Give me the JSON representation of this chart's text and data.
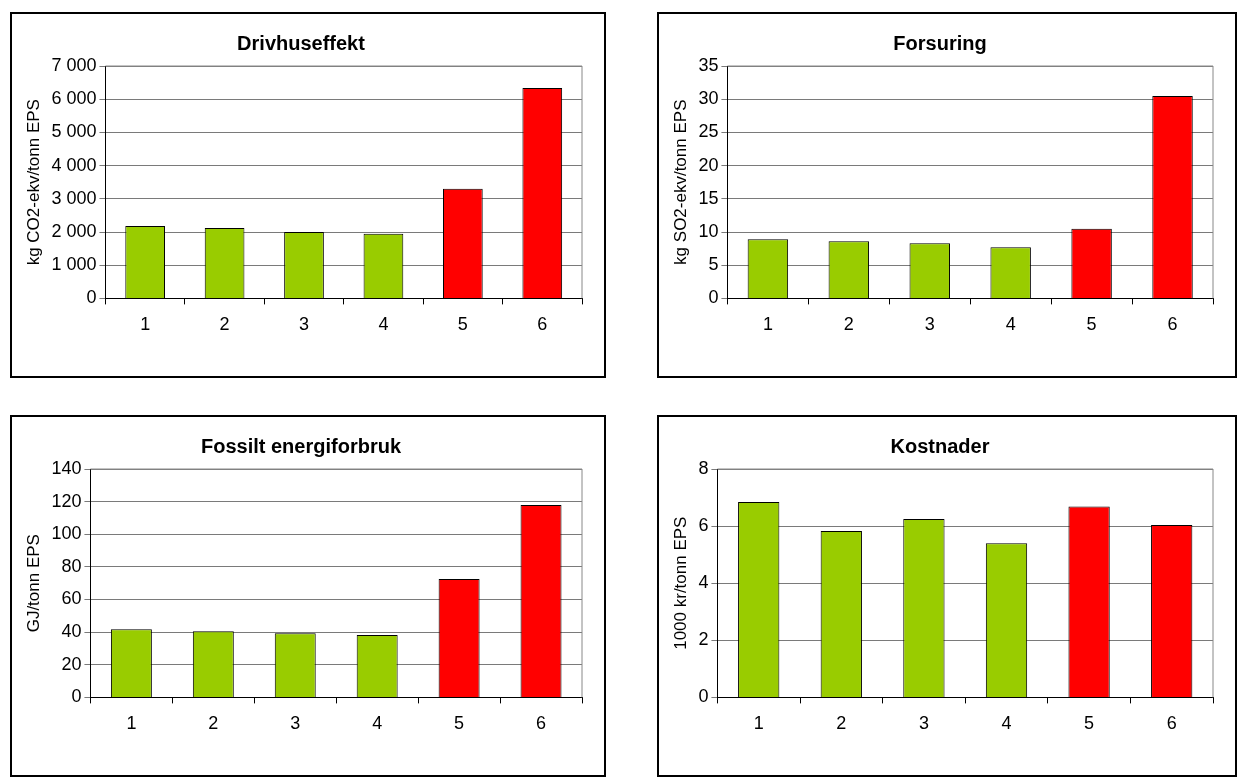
{
  "chart_data": [
    {
      "type": "bar",
      "title": "Drivhuseffekt",
      "ylabel": "kg CO2-ekv/tonn EPS",
      "categories": [
        "1",
        "2",
        "3",
        "4",
        "5",
        "6"
      ],
      "values": [
        2180,
        2120,
        2000,
        1950,
        3300,
        6340
      ],
      "colors": [
        "#99cc00",
        "#99cc00",
        "#99cc00",
        "#99cc00",
        "#ff0000",
        "#ff0000"
      ],
      "ylim": [
        0,
        7000
      ],
      "yticks": [
        0,
        {
          "value": 1000,
          "label": "1 000"
        },
        {
          "value": 2000,
          "label": "2 000"
        },
        {
          "value": 3000,
          "label": "3 000"
        },
        {
          "value": 4000,
          "label": "4 000"
        },
        {
          "value": 5000,
          "label": "5 000"
        },
        {
          "value": 6000,
          "label": "6 000"
        },
        {
          "value": 7000,
          "label": "7 000"
        }
      ],
      "grid": "y",
      "legend": false
    },
    {
      "type": "bar",
      "title": "Forsuring",
      "ylabel": "kg SO2-ekv/tonn EPS",
      "categories": [
        "1",
        "2",
        "3",
        "4",
        "5",
        "6"
      ],
      "values": [
        8.9,
        8.6,
        8.3,
        7.7,
        10.5,
        30.5
      ],
      "colors": [
        "#99cc00",
        "#99cc00",
        "#99cc00",
        "#99cc00",
        "#ff0000",
        "#ff0000"
      ],
      "ylim": [
        0,
        35
      ],
      "yticks": [
        0,
        5,
        10,
        15,
        20,
        25,
        30,
        35
      ],
      "grid": "y",
      "legend": false
    },
    {
      "type": "bar",
      "title": "Fossilt energiforbruk",
      "ylabel": "GJ/tonn EPS",
      "categories": [
        "1",
        "2",
        "3",
        "4",
        "5",
        "6"
      ],
      "values": [
        41.7,
        40.5,
        39.3,
        38.3,
        72.6,
        118
      ],
      "colors": [
        "#99cc00",
        "#99cc00",
        "#99cc00",
        "#99cc00",
        "#ff0000",
        "#ff0000"
      ],
      "ylim": [
        0,
        140
      ],
      "yticks": [
        0,
        20,
        40,
        60,
        80,
        100,
        120,
        140
      ],
      "grid": "y",
      "legend": false
    },
    {
      "type": "bar",
      "title": "Kostnader",
      "ylabel": "1000 kr/tonn EPS",
      "categories": [
        "1",
        "2",
        "3",
        "4",
        "5",
        "6"
      ],
      "values": [
        6.84,
        5.83,
        6.25,
        5.4,
        6.69,
        6.04
      ],
      "colors": [
        "#99cc00",
        "#99cc00",
        "#99cc00",
        "#99cc00",
        "#ff0000",
        "#ff0000"
      ],
      "ylim": [
        0,
        8
      ],
      "yticks": [
        0,
        2,
        4,
        6,
        8
      ],
      "grid": "y",
      "legend": false
    }
  ]
}
